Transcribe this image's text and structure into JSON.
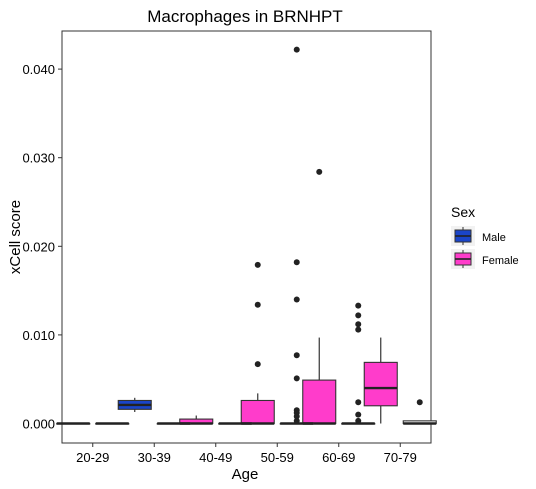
{
  "chart_data": {
    "type": "box",
    "title": "Macrophages in BRNHPT",
    "xlabel": "Age",
    "ylabel": "xCell score",
    "categories": [
      "20-29",
      "30-39",
      "40-49",
      "50-59",
      "60-69",
      "70-79"
    ],
    "ylim": [
      -0.0022,
      0.0443
    ],
    "yticks": [
      0.0,
      0.01,
      0.02,
      0.03,
      0.04
    ],
    "ytick_labels": [
      "0.000",
      "0.010",
      "0.020",
      "0.030",
      "0.040"
    ],
    "grid": false,
    "legend": {
      "title": "Sex",
      "position": "right",
      "entries": [
        {
          "name": "Male",
          "color": "#1a45c9"
        },
        {
          "name": "Female",
          "color": "#ff3ccb"
        }
      ]
    },
    "series": [
      {
        "name": "Male",
        "color": "#1a45c9",
        "boxes": [
          {
            "category": "20-29",
            "min": 0.0,
            "q1": 0.0,
            "median": 0.0,
            "q3": 0.0,
            "max": 0.0,
            "outliers": []
          },
          {
            "category": "30-39",
            "min": 0.0013,
            "q1": 0.0016,
            "median": 0.0021,
            "q3": 0.0026,
            "max": 0.0029,
            "outliers": []
          }
        ]
      },
      {
        "name": "Female",
        "color": "#ff3ccb",
        "boxes": [
          {
            "category": "40-49",
            "min": 0.0,
            "q1": 0.0,
            "median": 0.0,
            "q3": 0.0005,
            "max": 0.0009,
            "outliers": []
          },
          {
            "category": "50-59",
            "min": 0.0,
            "q1": 0.0,
            "median": 0.0,
            "q3": 0.0026,
            "max": 0.0034,
            "outliers": [
              0.0067,
              0.0134,
              0.0179
            ]
          },
          {
            "category": "60-69",
            "min": 0.0,
            "q1": 0.0,
            "median": 0.0,
            "q3": 0.0049,
            "max": 0.0097,
            "outliers": [
              0.0284
            ]
          },
          {
            "category": "70-79",
            "min": 0.0,
            "q1": 0.002,
            "median": 0.004,
            "q3": 0.0069,
            "max": 0.0097,
            "outliers": []
          }
        ]
      },
      {
        "name": "",
        "color": "#ffffff",
        "boxes": [
          {
            "category": "20-29",
            "min": 0.0,
            "q1": 0.0,
            "median": 0.0,
            "q3": 0.0,
            "max": 0.0,
            "outliers": []
          },
          {
            "category": "30-39",
            "min": 0.0,
            "q1": 0.0,
            "median": 0.0,
            "q3": 0.0,
            "max": 0.0,
            "outliers": []
          },
          {
            "category": "40-49",
            "min": 0.0,
            "q1": 0.0,
            "median": 0.0,
            "q3": 0.0,
            "max": 0.0,
            "outliers": []
          },
          {
            "category": "50-59",
            "min": 0.0,
            "q1": 0.0,
            "median": 0.0,
            "q3": 0.0,
            "max": 0.0,
            "outliers": [
              0.0003,
              0.0008,
              0.0012,
              0.0015,
              0.0051,
              0.0077,
              0.014,
              0.0182,
              0.0422
            ]
          },
          {
            "category": "60-69",
            "min": 0.0,
            "q1": 0.0,
            "median": 0.0,
            "q3": 0.0,
            "max": 0.0,
            "outliers": [
              0.0003,
              0.001,
              0.0024,
              0.0106,
              0.0112,
              0.0122,
              0.0133
            ]
          },
          {
            "category": "70-79",
            "min": 0.0,
            "q1": 0.0,
            "median": 0.0,
            "q3": 0.0003,
            "max": 0.0003,
            "outliers": [
              0.0024
            ]
          }
        ]
      }
    ]
  }
}
